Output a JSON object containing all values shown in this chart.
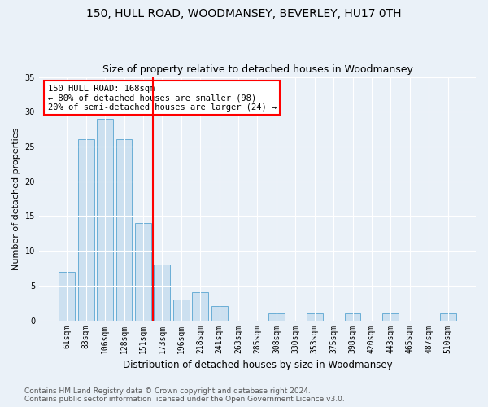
{
  "title": "150, HULL ROAD, WOODMANSEY, BEVERLEY, HU17 0TH",
  "subtitle": "Size of property relative to detached houses in Woodmansey",
  "xlabel": "Distribution of detached houses by size in Woodmansey",
  "ylabel": "Number of detached properties",
  "categories": [
    "61sqm",
    "83sqm",
    "106sqm",
    "128sqm",
    "151sqm",
    "173sqm",
    "196sqm",
    "218sqm",
    "241sqm",
    "263sqm",
    "285sqm",
    "308sqm",
    "330sqm",
    "353sqm",
    "375sqm",
    "398sqm",
    "420sqm",
    "443sqm",
    "465sqm",
    "487sqm",
    "510sqm"
  ],
  "values": [
    7,
    26,
    29,
    26,
    14,
    8,
    3,
    4,
    2,
    0,
    0,
    1,
    0,
    1,
    0,
    1,
    0,
    1,
    0,
    0,
    1
  ],
  "bar_color": "#cce0f0",
  "bar_edge_color": "#6aaed6",
  "vline_x_index": 5,
  "annotation_text": "150 HULL ROAD: 168sqm\n← 80% of detached houses are smaller (98)\n20% of semi-detached houses are larger (24) →",
  "annotation_box_color": "white",
  "annotation_box_edge_color": "red",
  "vline_color": "red",
  "ylim": [
    0,
    35
  ],
  "yticks": [
    0,
    5,
    10,
    15,
    20,
    25,
    30,
    35
  ],
  "bg_color": "#eaf1f8",
  "plot_bg_color": "#eaf1f8",
  "footer_line1": "Contains HM Land Registry data © Crown copyright and database right 2024.",
  "footer_line2": "Contains public sector information licensed under the Open Government Licence v3.0.",
  "title_fontsize": 10,
  "subtitle_fontsize": 9,
  "xlabel_fontsize": 8.5,
  "ylabel_fontsize": 8,
  "tick_fontsize": 7,
  "annotation_fontsize": 7.5,
  "footer_fontsize": 6.5
}
